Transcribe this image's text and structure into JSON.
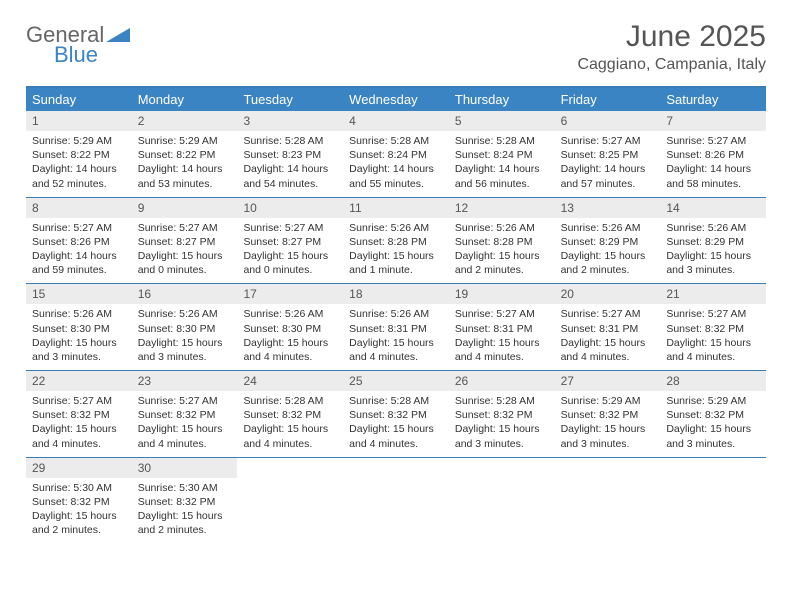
{
  "logo": {
    "word1": "General",
    "word2": "Blue"
  },
  "title": "June 2025",
  "location": "Caggiano, Campania, Italy",
  "colors": {
    "header_bg": "#3b84c4",
    "rule": "#3b7db5",
    "date_bg": "#ececec",
    "text": "#333333",
    "muted": "#555555"
  },
  "day_names": [
    "Sunday",
    "Monday",
    "Tuesday",
    "Wednesday",
    "Thursday",
    "Friday",
    "Saturday"
  ],
  "weeks": [
    [
      {
        "n": "1",
        "sr": "Sunrise: 5:29 AM",
        "ss": "Sunset: 8:22 PM",
        "dl": "Daylight: 14 hours and 52 minutes."
      },
      {
        "n": "2",
        "sr": "Sunrise: 5:29 AM",
        "ss": "Sunset: 8:22 PM",
        "dl": "Daylight: 14 hours and 53 minutes."
      },
      {
        "n": "3",
        "sr": "Sunrise: 5:28 AM",
        "ss": "Sunset: 8:23 PM",
        "dl": "Daylight: 14 hours and 54 minutes."
      },
      {
        "n": "4",
        "sr": "Sunrise: 5:28 AM",
        "ss": "Sunset: 8:24 PM",
        "dl": "Daylight: 14 hours and 55 minutes."
      },
      {
        "n": "5",
        "sr": "Sunrise: 5:28 AM",
        "ss": "Sunset: 8:24 PM",
        "dl": "Daylight: 14 hours and 56 minutes."
      },
      {
        "n": "6",
        "sr": "Sunrise: 5:27 AM",
        "ss": "Sunset: 8:25 PM",
        "dl": "Daylight: 14 hours and 57 minutes."
      },
      {
        "n": "7",
        "sr": "Sunrise: 5:27 AM",
        "ss": "Sunset: 8:26 PM",
        "dl": "Daylight: 14 hours and 58 minutes."
      }
    ],
    [
      {
        "n": "8",
        "sr": "Sunrise: 5:27 AM",
        "ss": "Sunset: 8:26 PM",
        "dl": "Daylight: 14 hours and 59 minutes."
      },
      {
        "n": "9",
        "sr": "Sunrise: 5:27 AM",
        "ss": "Sunset: 8:27 PM",
        "dl": "Daylight: 15 hours and 0 minutes."
      },
      {
        "n": "10",
        "sr": "Sunrise: 5:27 AM",
        "ss": "Sunset: 8:27 PM",
        "dl": "Daylight: 15 hours and 0 minutes."
      },
      {
        "n": "11",
        "sr": "Sunrise: 5:26 AM",
        "ss": "Sunset: 8:28 PM",
        "dl": "Daylight: 15 hours and 1 minute."
      },
      {
        "n": "12",
        "sr": "Sunrise: 5:26 AM",
        "ss": "Sunset: 8:28 PM",
        "dl": "Daylight: 15 hours and 2 minutes."
      },
      {
        "n": "13",
        "sr": "Sunrise: 5:26 AM",
        "ss": "Sunset: 8:29 PM",
        "dl": "Daylight: 15 hours and 2 minutes."
      },
      {
        "n": "14",
        "sr": "Sunrise: 5:26 AM",
        "ss": "Sunset: 8:29 PM",
        "dl": "Daylight: 15 hours and 3 minutes."
      }
    ],
    [
      {
        "n": "15",
        "sr": "Sunrise: 5:26 AM",
        "ss": "Sunset: 8:30 PM",
        "dl": "Daylight: 15 hours and 3 minutes."
      },
      {
        "n": "16",
        "sr": "Sunrise: 5:26 AM",
        "ss": "Sunset: 8:30 PM",
        "dl": "Daylight: 15 hours and 3 minutes."
      },
      {
        "n": "17",
        "sr": "Sunrise: 5:26 AM",
        "ss": "Sunset: 8:30 PM",
        "dl": "Daylight: 15 hours and 4 minutes."
      },
      {
        "n": "18",
        "sr": "Sunrise: 5:26 AM",
        "ss": "Sunset: 8:31 PM",
        "dl": "Daylight: 15 hours and 4 minutes."
      },
      {
        "n": "19",
        "sr": "Sunrise: 5:27 AM",
        "ss": "Sunset: 8:31 PM",
        "dl": "Daylight: 15 hours and 4 minutes."
      },
      {
        "n": "20",
        "sr": "Sunrise: 5:27 AM",
        "ss": "Sunset: 8:31 PM",
        "dl": "Daylight: 15 hours and 4 minutes."
      },
      {
        "n": "21",
        "sr": "Sunrise: 5:27 AM",
        "ss": "Sunset: 8:32 PM",
        "dl": "Daylight: 15 hours and 4 minutes."
      }
    ],
    [
      {
        "n": "22",
        "sr": "Sunrise: 5:27 AM",
        "ss": "Sunset: 8:32 PM",
        "dl": "Daylight: 15 hours and 4 minutes."
      },
      {
        "n": "23",
        "sr": "Sunrise: 5:27 AM",
        "ss": "Sunset: 8:32 PM",
        "dl": "Daylight: 15 hours and 4 minutes."
      },
      {
        "n": "24",
        "sr": "Sunrise: 5:28 AM",
        "ss": "Sunset: 8:32 PM",
        "dl": "Daylight: 15 hours and 4 minutes."
      },
      {
        "n": "25",
        "sr": "Sunrise: 5:28 AM",
        "ss": "Sunset: 8:32 PM",
        "dl": "Daylight: 15 hours and 4 minutes."
      },
      {
        "n": "26",
        "sr": "Sunrise: 5:28 AM",
        "ss": "Sunset: 8:32 PM",
        "dl": "Daylight: 15 hours and 3 minutes."
      },
      {
        "n": "27",
        "sr": "Sunrise: 5:29 AM",
        "ss": "Sunset: 8:32 PM",
        "dl": "Daylight: 15 hours and 3 minutes."
      },
      {
        "n": "28",
        "sr": "Sunrise: 5:29 AM",
        "ss": "Sunset: 8:32 PM",
        "dl": "Daylight: 15 hours and 3 minutes."
      }
    ],
    [
      {
        "n": "29",
        "sr": "Sunrise: 5:30 AM",
        "ss": "Sunset: 8:32 PM",
        "dl": "Daylight: 15 hours and 2 minutes."
      },
      {
        "n": "30",
        "sr": "Sunrise: 5:30 AM",
        "ss": "Sunset: 8:32 PM",
        "dl": "Daylight: 15 hours and 2 minutes."
      },
      null,
      null,
      null,
      null,
      null
    ]
  ]
}
